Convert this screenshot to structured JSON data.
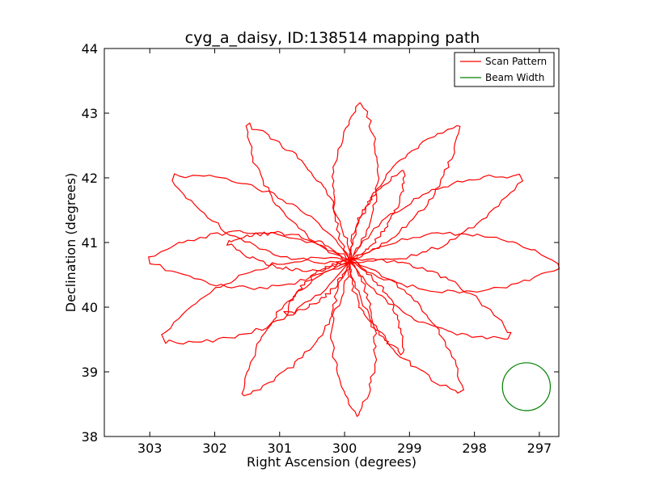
{
  "chart_data": {
    "type": "line",
    "title": "cyg_a_daisy, ID:138514 mapping path",
    "xlabel": "Right Ascension (degrees)",
    "ylabel": "Declination (degrees)",
    "xlim": [
      303.7,
      296.7
    ],
    "ylim": [
      38,
      44
    ],
    "x_inverted": true,
    "xticks": [
      303,
      302,
      301,
      300,
      299,
      298,
      297
    ],
    "yticks": [
      38,
      39,
      40,
      41,
      42,
      43,
      44
    ],
    "grid": false,
    "legend_position": "top-right",
    "center": [
      299.92,
      40.72
    ],
    "series": [
      {
        "name": "Scan Pattern",
        "color": "#ff0000",
        "petal_count": 16,
        "petal_tips": [
          [
            299.75,
            43.15
          ],
          [
            298.25,
            42.8
          ],
          [
            297.3,
            42.0
          ],
          [
            296.7,
            40.65
          ],
          [
            297.45,
            39.55
          ],
          [
            298.2,
            38.7
          ],
          [
            299.8,
            38.32
          ],
          [
            301.55,
            38.65
          ],
          [
            302.8,
            39.5
          ],
          [
            303.0,
            40.75
          ],
          [
            302.65,
            42.0
          ],
          [
            301.5,
            42.8
          ],
          [
            301.8,
            41.0
          ],
          [
            299.1,
            39.3
          ],
          [
            299.1,
            42.1
          ],
          [
            300.9,
            39.9
          ]
        ]
      },
      {
        "name": "Beam Width",
        "color": "#008000",
        "circle_center": [
          297.2,
          38.77
        ],
        "circle_radius": 0.37
      }
    ]
  }
}
